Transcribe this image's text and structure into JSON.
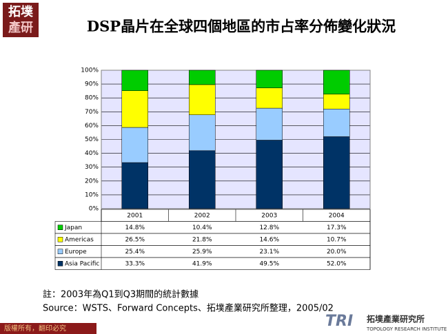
{
  "logo": {
    "line1": "拓墣",
    "line2": "產研"
  },
  "chart_data": {
    "type": "bar",
    "stacked": true,
    "title": "DSP晶片在全球四個地區的市占率分佈變化狀況",
    "categories": [
      "2001",
      "2002",
      "2003",
      "2004"
    ],
    "series": [
      {
        "name": "Asia Pacific",
        "color": "#003366",
        "values": [
          33.3,
          41.9,
          49.5,
          52
        ],
        "value_labels": [
          "33.3%",
          "41.9%",
          "49.5%",
          "52.0%"
        ]
      },
      {
        "name": "Europe",
        "color": "#99ccff",
        "values": [
          25.4,
          25.9,
          23.1,
          20
        ],
        "value_labels": [
          "25.4%",
          "25.9%",
          "23.1%",
          "20.0%"
        ]
      },
      {
        "name": "Americas",
        "color": "#ffff00",
        "values": [
          26.5,
          21.8,
          14.6,
          10.7
        ],
        "value_labels": [
          "26.5%",
          "21.8%",
          "14.6%",
          "10.7%"
        ]
      },
      {
        "name": "Japan",
        "color": "#00cc00",
        "values": [
          14.8,
          10.4,
          12.8,
          17.3
        ],
        "value_labels": [
          "14.8%",
          "10.4%",
          "12.8%",
          "17.3%"
        ]
      }
    ],
    "ylim": [
      0,
      100
    ],
    "yticks": [
      {
        "value": 0,
        "label": "0%"
      },
      {
        "value": 10,
        "label": "10%"
      },
      {
        "value": 20,
        "label": "20%"
      },
      {
        "value": 30,
        "label": "30%"
      },
      {
        "value": 40,
        "label": "40%"
      },
      {
        "value": 50,
        "label": "50%"
      },
      {
        "value": 60,
        "label": "60%"
      },
      {
        "value": 70,
        "label": "70%"
      },
      {
        "value": 80,
        "label": "80%"
      },
      {
        "value": 90,
        "label": "90%"
      },
      {
        "value": 100,
        "label": "100%"
      }
    ],
    "grid": true
  },
  "notes": [
    "註：2003年為Q1到Q3期間的統計數據",
    "Source：WSTS、Forward Concepts、拓墣產業研究所整理，2005/02"
  ],
  "footer": {
    "copyright": "版權所有，翻印必究",
    "brand_mark": "TRI",
    "brand_name": "拓墣產業研究所",
    "brand_subtitle": "TOPOLOGY RESEARCH INSTITUTE"
  }
}
